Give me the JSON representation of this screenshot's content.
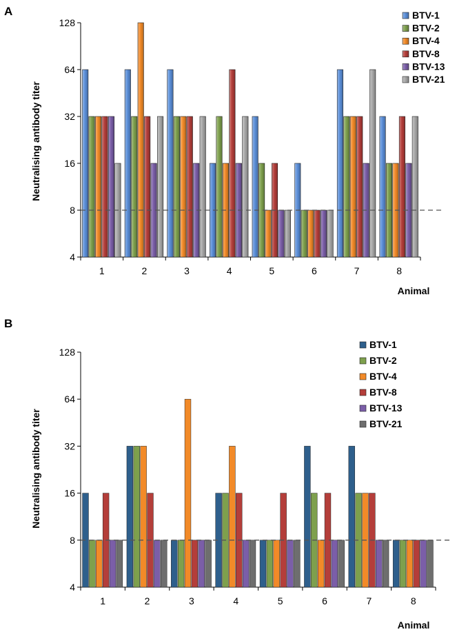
{
  "chart_data": [
    {
      "panel": "A",
      "type": "bar",
      "xlabel": "Animal",
      "ylabel": "Neutralising antibody titer",
      "y_scale": "log2",
      "ylim": [
        4,
        128
      ],
      "yticks": [
        "4",
        "8",
        "16",
        "32",
        "64",
        "128"
      ],
      "categories": [
        "1",
        "2",
        "3",
        "4",
        "5",
        "6",
        "7",
        "8"
      ],
      "reference_line": 8,
      "legend_position": "top-right",
      "bar_style": "gradient",
      "series": [
        {
          "name": "BTV-1",
          "color": "#5b8fd9",
          "values": [
            64,
            64,
            64,
            16,
            32,
            16,
            64,
            32
          ]
        },
        {
          "name": "BTV-2",
          "color": "#7ea04d",
          "values": [
            32,
            32,
            32,
            32,
            16,
            8,
            32,
            16
          ]
        },
        {
          "name": "BTV-4",
          "color": "#f28a28",
          "values": [
            32,
            128,
            32,
            16,
            8,
            8,
            32,
            16
          ]
        },
        {
          "name": "BTV-8",
          "color": "#b43e3a",
          "values": [
            32,
            32,
            32,
            64,
            16,
            8,
            32,
            32
          ]
        },
        {
          "name": "BTV-13",
          "color": "#7b5ea8",
          "values": [
            32,
            16,
            16,
            16,
            8,
            8,
            16,
            16
          ]
        },
        {
          "name": "BTV-21",
          "color": "#a8a8a8",
          "values": [
            16,
            32,
            32,
            32,
            8,
            8,
            64,
            32
          ]
        }
      ]
    },
    {
      "panel": "B",
      "type": "bar",
      "xlabel": "Animal",
      "ylabel": "Neutralising antibody titer",
      "y_scale": "log2",
      "ylim": [
        4,
        128
      ],
      "yticks": [
        "4",
        "8",
        "16",
        "32",
        "64",
        "128"
      ],
      "categories": [
        "1",
        "2",
        "3",
        "4",
        "5",
        "6",
        "7",
        "8"
      ],
      "reference_line": 8,
      "legend_position": "top-right",
      "bar_style": "flat",
      "series": [
        {
          "name": "BTV-1",
          "color": "#2e5f8c",
          "values": [
            16,
            32,
            8,
            16,
            8,
            32,
            32,
            8
          ]
        },
        {
          "name": "BTV-2",
          "color": "#7ea04d",
          "values": [
            8,
            32,
            8,
            16,
            8,
            16,
            16,
            8
          ]
        },
        {
          "name": "BTV-4",
          "color": "#f28a28",
          "values": [
            8,
            32,
            64,
            32,
            8,
            8,
            16,
            8
          ]
        },
        {
          "name": "BTV-8",
          "color": "#b43e3a",
          "values": [
            16,
            16,
            8,
            16,
            16,
            16,
            16,
            8
          ]
        },
        {
          "name": "BTV-13",
          "color": "#7b5ea8",
          "values": [
            8,
            8,
            8,
            8,
            8,
            8,
            8,
            8
          ]
        },
        {
          "name": "BTV-21",
          "color": "#6e6e6e",
          "values": [
            8,
            8,
            8,
            8,
            8,
            8,
            8,
            8
          ]
        }
      ]
    }
  ]
}
